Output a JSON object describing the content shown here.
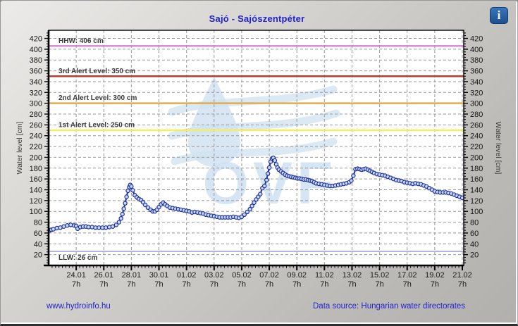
{
  "header": {
    "title": "Sajó - Sajószentpéter",
    "info_glyph": "i"
  },
  "footer": {
    "site_link": "www.hydroinfo.hu",
    "data_source": "Data source: Hungarian water directorates"
  },
  "chart_data": {
    "type": "line",
    "title": "Sajó - Sajószentpéter",
    "ylabel_left": "Water level [cm]",
    "ylabel_right": "Water level [cm]",
    "y_unit": "cm",
    "ylim": [
      0,
      435
    ],
    "ytick_step": 20,
    "yticks": [
      20,
      40,
      60,
      80,
      100,
      120,
      140,
      160,
      180,
      200,
      220,
      240,
      260,
      280,
      300,
      320,
      340,
      360,
      380,
      400,
      420
    ],
    "x_total_days": 30,
    "x_ticks": [
      {
        "day": 2,
        "label": "24.01",
        "sub": "7h"
      },
      {
        "day": 4,
        "label": "26.01",
        "sub": "7h"
      },
      {
        "day": 6,
        "label": "28.01",
        "sub": "7h"
      },
      {
        "day": 8,
        "label": "30.01",
        "sub": "7h"
      },
      {
        "day": 10,
        "label": "01.02",
        "sub": "7h"
      },
      {
        "day": 12,
        "label": "03.02",
        "sub": "7h"
      },
      {
        "day": 14,
        "label": "05.02",
        "sub": "7h"
      },
      {
        "day": 16,
        "label": "07.02",
        "sub": "7h"
      },
      {
        "day": 18,
        "label": "09.02",
        "sub": "7h"
      },
      {
        "day": 20,
        "label": "11.02",
        "sub": "7h"
      },
      {
        "day": 22,
        "label": "13.02",
        "sub": "7h"
      },
      {
        "day": 24,
        "label": "15.02",
        "sub": "7h"
      },
      {
        "day": 26,
        "label": "17.02",
        "sub": "7h"
      },
      {
        "day": 28,
        "label": "19.02",
        "sub": "7h"
      },
      {
        "day": 30,
        "label": "21.02",
        "sub": "7h"
      }
    ],
    "grid": {
      "on": true,
      "color": "#999999",
      "dash": "4 3"
    },
    "legend": "none",
    "reference_lines": [
      {
        "label": "HHW: 406 cm",
        "value": 406,
        "color": "#cf6fcf",
        "width": 2,
        "label_side": "above"
      },
      {
        "label": "3rd Alert Level: 350 cm",
        "value": 350,
        "color": "#c03a2e",
        "width": 2.5,
        "label_side": "above"
      },
      {
        "label": "2nd Alert Level: 300 cm",
        "value": 300,
        "color": "#e2ac4c",
        "width": 2.5,
        "label_side": "above"
      },
      {
        "label": "1st Alert Level: 250 cm",
        "value": 250,
        "color": "#f2ee5e",
        "width": 2.5,
        "label_side": "above"
      },
      {
        "label": "LLW: 26 cm",
        "value": 26,
        "color": "#b3b3de",
        "width": 2,
        "label_side": "below"
      }
    ],
    "watermark": {
      "text": "OVF",
      "color": "#cfe1f1"
    },
    "series": [
      {
        "name": "water level",
        "line_color": "#1f2fa0",
        "marker_fill": "#c8daf0",
        "marker_stroke": "#1f2fa0",
        "points": [
          [
            0.1,
            65
          ],
          [
            0.2,
            66
          ],
          [
            0.35,
            67
          ],
          [
            0.6,
            69
          ],
          [
            0.85,
            70
          ],
          [
            1.1,
            72
          ],
          [
            1.35,
            74
          ],
          [
            1.6,
            75
          ],
          [
            1.85,
            74
          ],
          [
            2.0,
            73
          ],
          [
            2.1,
            68
          ],
          [
            2.3,
            71
          ],
          [
            2.5,
            72
          ],
          [
            2.7,
            72
          ],
          [
            2.9,
            71
          ],
          [
            3.15,
            71
          ],
          [
            3.4,
            70
          ],
          [
            3.65,
            70
          ],
          [
            3.9,
            70
          ],
          [
            4.15,
            70
          ],
          [
            4.4,
            71
          ],
          [
            4.65,
            72
          ],
          [
            4.9,
            75
          ],
          [
            5.1,
            80
          ],
          [
            5.25,
            87
          ],
          [
            5.35,
            95
          ],
          [
            5.45,
            105
          ],
          [
            5.55,
            115
          ],
          [
            5.65,
            127
          ],
          [
            5.75,
            138
          ],
          [
            5.85,
            145
          ],
          [
            5.92,
            149
          ],
          [
            6.0,
            146
          ],
          [
            6.1,
            139
          ],
          [
            6.25,
            130
          ],
          [
            6.4,
            126
          ],
          [
            6.55,
            123
          ],
          [
            6.7,
            121
          ],
          [
            6.85,
            117
          ],
          [
            7.0,
            112
          ],
          [
            7.2,
            107
          ],
          [
            7.4,
            103
          ],
          [
            7.55,
            100
          ],
          [
            7.7,
            100
          ],
          [
            7.85,
            103
          ],
          [
            8.0,
            108
          ],
          [
            8.15,
            113
          ],
          [
            8.3,
            116
          ],
          [
            8.45,
            113
          ],
          [
            8.6,
            110
          ],
          [
            8.8,
            107
          ],
          [
            9.0,
            106
          ],
          [
            9.2,
            105
          ],
          [
            9.4,
            104
          ],
          [
            9.6,
            103
          ],
          [
            9.8,
            102
          ],
          [
            10.0,
            101
          ],
          [
            10.2,
            100
          ],
          [
            10.4,
            98
          ],
          [
            10.6,
            99
          ],
          [
            10.8,
            98
          ],
          [
            11.0,
            97
          ],
          [
            11.2,
            96
          ],
          [
            11.4,
            94
          ],
          [
            11.6,
            93
          ],
          [
            11.8,
            92
          ],
          [
            12.0,
            91
          ],
          [
            12.2,
            90
          ],
          [
            12.4,
            89
          ],
          [
            12.6,
            89
          ],
          [
            12.8,
            89
          ],
          [
            13.0,
            89
          ],
          [
            13.2,
            89
          ],
          [
            13.4,
            90
          ],
          [
            13.6,
            89
          ],
          [
            13.8,
            88
          ],
          [
            14.0,
            90
          ],
          [
            14.2,
            94
          ],
          [
            14.4,
            99
          ],
          [
            14.6,
            104
          ],
          [
            14.75,
            110
          ],
          [
            14.9,
            116
          ],
          [
            15.05,
            122
          ],
          [
            15.2,
            127
          ],
          [
            15.35,
            132
          ],
          [
            15.5,
            143
          ],
          [
            15.65,
            147
          ],
          [
            15.8,
            158
          ],
          [
            15.9,
            170
          ],
          [
            16.0,
            181
          ],
          [
            16.1,
            192
          ],
          [
            16.2,
            198
          ],
          [
            16.3,
            199
          ],
          [
            16.4,
            194
          ],
          [
            16.5,
            187
          ],
          [
            16.6,
            181
          ],
          [
            16.7,
            177
          ],
          [
            16.85,
            174
          ],
          [
            17.0,
            171
          ],
          [
            17.15,
            168
          ],
          [
            17.3,
            166
          ],
          [
            17.45,
            165
          ],
          [
            17.6,
            164
          ],
          [
            17.75,
            163
          ],
          [
            17.9,
            162
          ],
          [
            18.05,
            161
          ],
          [
            18.2,
            161
          ],
          [
            18.35,
            160
          ],
          [
            18.5,
            159
          ],
          [
            18.65,
            159
          ],
          [
            18.8,
            158
          ],
          [
            18.95,
            157
          ],
          [
            19.1,
            156
          ],
          [
            19.25,
            154
          ],
          [
            19.4,
            152
          ],
          [
            19.6,
            151
          ],
          [
            19.8,
            150
          ],
          [
            20.0,
            149
          ],
          [
            20.2,
            148
          ],
          [
            20.4,
            147
          ],
          [
            20.6,
            147
          ],
          [
            20.8,
            148
          ],
          [
            21.0,
            149
          ],
          [
            21.2,
            150
          ],
          [
            21.4,
            151
          ],
          [
            21.6,
            152
          ],
          [
            21.8,
            154
          ],
          [
            21.95,
            157
          ],
          [
            22.1,
            166
          ],
          [
            22.25,
            178
          ],
          [
            22.4,
            179
          ],
          [
            22.55,
            178
          ],
          [
            22.7,
            177
          ],
          [
            22.85,
            178
          ],
          [
            23.0,
            179
          ],
          [
            23.15,
            177
          ],
          [
            23.3,
            175
          ],
          [
            23.45,
            173
          ],
          [
            23.6,
            171
          ],
          [
            23.8,
            169
          ],
          [
            24.0,
            168
          ],
          [
            24.2,
            167
          ],
          [
            24.4,
            166
          ],
          [
            24.6,
            164
          ],
          [
            24.8,
            162
          ],
          [
            25.0,
            160
          ],
          [
            25.2,
            158
          ],
          [
            25.4,
            157
          ],
          [
            25.6,
            156
          ],
          [
            25.8,
            154
          ],
          [
            26.0,
            153
          ],
          [
            26.2,
            152
          ],
          [
            26.4,
            151
          ],
          [
            26.6,
            152
          ],
          [
            26.8,
            151
          ],
          [
            27.0,
            150
          ],
          [
            27.2,
            148
          ],
          [
            27.4,
            146
          ],
          [
            27.6,
            143
          ],
          [
            27.8,
            140
          ],
          [
            28.0,
            137
          ],
          [
            28.2,
            136
          ],
          [
            28.4,
            135
          ],
          [
            28.6,
            135
          ],
          [
            28.8,
            135
          ],
          [
            29.0,
            134
          ],
          [
            29.2,
            133
          ],
          [
            29.4,
            131
          ],
          [
            29.6,
            129
          ],
          [
            29.8,
            127
          ],
          [
            30.0,
            125
          ]
        ]
      }
    ]
  },
  "colors": {
    "title_text": "#2323cd",
    "footer_text": "#2323cd",
    "plot_background": "#ffffff",
    "panel_background": "#c8c6c2"
  }
}
